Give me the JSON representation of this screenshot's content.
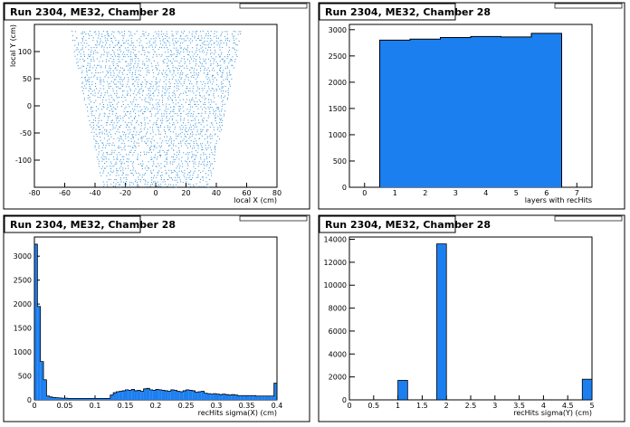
{
  "chart_data": [
    {
      "type": "scatter",
      "title": "Run 2304, ME32, Chamber 28",
      "xlabel": "local X (cm)",
      "ylabel": "local Y (cm)",
      "xlim": [
        -80,
        80
      ],
      "ylim": [
        -150,
        150
      ],
      "xticks": [
        -80,
        -60,
        -40,
        -20,
        0,
        20,
        40,
        60,
        80
      ],
      "yticks": [
        -100,
        -50,
        0,
        50,
        100
      ],
      "region": {
        "y_min": -150,
        "y_max": 150,
        "x_half_width_at_top": 58,
        "x_half_width_at_bottom": 35
      },
      "point_color": "#2a8ad6"
    },
    {
      "type": "bar",
      "title": "Run 2304, ME32, Chamber 28",
      "xlabel": "layers with recHits",
      "ylabel": "",
      "xlim": [
        -0.5,
        7.5
      ],
      "ylim": [
        0,
        3100
      ],
      "xticks": [
        0,
        1,
        2,
        3,
        4,
        5,
        6,
        7
      ],
      "yticks": [
        0,
        500,
        1000,
        1500,
        2000,
        2500,
        3000
      ],
      "categories": [
        1,
        2,
        3,
        4,
        5,
        6
      ],
      "values": [
        2800,
        2820,
        2850,
        2870,
        2860,
        2930
      ],
      "bar_color": "#1c7ff0"
    },
    {
      "type": "bar",
      "title": "Run 2304, ME32, Chamber 28",
      "xlabel": "recHits sigma(X) (cm)",
      "ylabel": "",
      "xlim": [
        0,
        0.4
      ],
      "ylim": [
        0,
        3400
      ],
      "xticks": [
        0,
        0.05,
        0.1,
        0.15,
        0.2,
        0.25,
        0.3,
        0.35,
        0.4
      ],
      "xtick_labels": [
        "0",
        "0.05",
        "0.1",
        "0.15",
        "0.2",
        "0.25",
        "0.3",
        "0.35",
        "0.4"
      ],
      "yticks": [
        0,
        500,
        1000,
        1500,
        2000,
        2500,
        3000
      ],
      "bin_width": 0.005,
      "values": [
        3250,
        1950,
        800,
        420,
        80,
        60,
        50,
        45,
        40,
        35,
        35,
        30,
        30,
        30,
        30,
        30,
        30,
        30,
        30,
        30,
        30,
        30,
        30,
        30,
        30,
        100,
        150,
        170,
        180,
        190,
        210,
        200,
        220,
        190,
        200,
        180,
        230,
        240,
        210,
        200,
        220,
        210,
        200,
        190,
        180,
        210,
        200,
        180,
        170,
        190,
        210,
        200,
        190,
        160,
        170,
        180,
        140,
        130,
        120,
        130,
        120,
        110,
        120,
        110,
        100,
        110,
        100,
        90,
        90,
        90,
        90,
        90,
        90,
        80,
        80,
        80,
        80,
        80,
        80,
        350
      ],
      "bar_color": "#1c7ff0"
    },
    {
      "type": "bar",
      "title": "Run 2304, ME32, Chamber 28",
      "xlabel": "recHits sigma(Y) (cm)",
      "ylabel": "",
      "xlim": [
        0,
        5
      ],
      "ylim": [
        0,
        14200
      ],
      "xticks": [
        0,
        0.5,
        1,
        1.5,
        2,
        2.5,
        3,
        3.5,
        4,
        4.5,
        5
      ],
      "xtick_labels": [
        "0",
        "0.5",
        "1",
        "1.5",
        "2",
        "2.5",
        "3",
        "3.5",
        "4",
        "4.5",
        "5"
      ],
      "yticks": [
        0,
        2000,
        4000,
        6000,
        8000,
        10000,
        12000,
        14000
      ],
      "bins": [
        {
          "x0": 1.0,
          "x1": 1.2,
          "value": 1700
        },
        {
          "x0": 1.8,
          "x1": 2.0,
          "value": 13600
        },
        {
          "x0": 4.8,
          "x1": 5.0,
          "value": 1800
        }
      ],
      "bar_color": "#1c7ff0"
    }
  ]
}
